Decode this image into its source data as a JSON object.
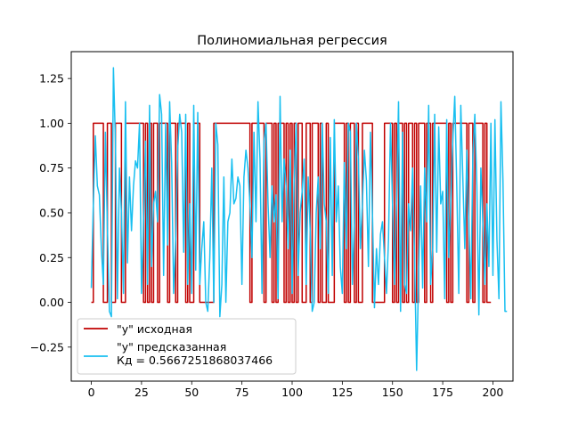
{
  "chart_data": {
    "type": "line",
    "title": "Полиномиальная регрессия",
    "xlabel": "",
    "ylabel": "",
    "xlim": [
      -10,
      210
    ],
    "ylim": [
      -0.44,
      1.4
    ],
    "x_ticks": [
      0,
      25,
      50,
      75,
      100,
      125,
      150,
      175,
      200
    ],
    "x_tick_labels": [
      "0",
      "25",
      "50",
      "75",
      "100",
      "125",
      "150",
      "175",
      "200"
    ],
    "y_ticks": [
      -0.25,
      0.0,
      0.25,
      0.5,
      0.75,
      1.0,
      1.25
    ],
    "y_tick_labels": [
      "−0.25",
      "0.00",
      "0.25",
      "0.50",
      "0.75",
      "1.00",
      "1.25"
    ],
    "grid": false,
    "legend_position": "lower-left",
    "series": [
      {
        "name": "\"y\" исходная",
        "color": "#c00000",
        "style": "step",
        "x_start": 0,
        "values": [
          0,
          1,
          1,
          1,
          1,
          1,
          0,
          0,
          1,
          1,
          0,
          0,
          1,
          1,
          1,
          0,
          0,
          1,
          1,
          1,
          1,
          1,
          1,
          1,
          1,
          1,
          0,
          1,
          0,
          1,
          0,
          1,
          1,
          0,
          1,
          1,
          1,
          1,
          0,
          1,
          1,
          1,
          0,
          1,
          1,
          1,
          1,
          0,
          1,
          0,
          0,
          1,
          1,
          1,
          0,
          0,
          0,
          0,
          0,
          0,
          0,
          1,
          1,
          1,
          1,
          1,
          1,
          1,
          1,
          1,
          1,
          1,
          1,
          1,
          1,
          1,
          1,
          1,
          1,
          0,
          1,
          1,
          1,
          1,
          1,
          1,
          0,
          1,
          1,
          1,
          0,
          1,
          0,
          1,
          1,
          1,
          0,
          1,
          0,
          1,
          0,
          1,
          0,
          1,
          1,
          0,
          0,
          1,
          1,
          0,
          1,
          1,
          1,
          0,
          1,
          0,
          0,
          1,
          0,
          0,
          0,
          1,
          1,
          1,
          1,
          1,
          0,
          1,
          0,
          1,
          1,
          0,
          1,
          0,
          0,
          1,
          1,
          1,
          1,
          1,
          0,
          0,
          0,
          0,
          0,
          0,
          1,
          1,
          1,
          1,
          0,
          1,
          0,
          1,
          1,
          0,
          1,
          0,
          1,
          1,
          0,
          1,
          0,
          1,
          1,
          1,
          0,
          1,
          1,
          0,
          1,
          1,
          1,
          1,
          1,
          1,
          1,
          0,
          1,
          0,
          1,
          1,
          1,
          1,
          1,
          1,
          1,
          0,
          1,
          1,
          0,
          1,
          1,
          1,
          1,
          0,
          1,
          0,
          0,
          0
        ]
      },
      {
        "name": "\"y\" предсказанная\nКд = 0.5667251868037466",
        "color": "#18bff0",
        "style": "line",
        "x_start": 0,
        "values": [
          0.08,
          0.55,
          0.93,
          0.65,
          0.6,
          0.3,
          0.1,
          0.95,
          0.42,
          -0.05,
          -0.08,
          1.31,
          0.9,
          0.02,
          0.75,
          0.5,
          0.05,
          1.12,
          0.22,
          0.7,
          0.4,
          0.65,
          0.79,
          0.75,
          1.0,
          0.05,
          0.45,
          0.9,
          0.1,
          1.1,
          0.2,
          0.55,
          0.62,
          0.45,
          1.16,
          1.05,
          0.15,
          1.0,
          0.32,
          1.12,
          0.78,
          0.05,
          0.35,
          0.85,
          1.05,
          0.95,
          0.28,
          1.05,
          0.1,
          0.55,
          0.05,
          1.1,
          0.18,
          1.06,
          0.1,
          0.3,
          0.45,
          0.0,
          -0.05,
          0.25,
          0.75,
          0.0,
          1.0,
          0.88,
          -0.08,
          0.1,
          0.7,
          0.0,
          0.45,
          0.5,
          0.8,
          0.55,
          0.58,
          0.7,
          0.65,
          0.1,
          0.7,
          0.85,
          0.75,
          0.55,
          0.25,
          0.95,
          0.45,
          1.12,
          0.8,
          0.05,
          0.9,
          1.0,
          0.55,
          0.25,
          0.65,
          0.45,
          0.6,
          0.02,
          1.15,
          0.45,
          0.8,
          0.65,
          0.3,
          0.85,
          0.05,
          0.68,
          1.0,
          0.15,
          0.5,
          0.62,
          0.8,
          0.1,
          0.7,
          0.4,
          -0.05,
          0.0,
          0.5,
          0.7,
          0.3,
          1.0,
          0.55,
          0.45,
          0.05,
          0.92,
          0.15,
          1.02,
          0.45,
          0.65,
          0.2,
          0.05,
          0.78,
          0.3,
          1.0,
          0.95,
          0.1,
          0.45,
          1.0,
          0.8,
          0.3,
          0.55,
          0.85,
          0.68,
          0.2,
          0.95,
          0.5,
          -0.03,
          0.3,
          0.1,
          0.38,
          0.45,
          0.25,
          0.05,
          0.35,
          1.0,
          0.55,
          0.1,
          0.55,
          1.12,
          -0.05,
          0.95,
          0.1,
          0.05,
          0.55,
          0.4,
          0.75,
          0.25,
          -0.38,
          0.15,
          0.65,
          0.08,
          0.75,
          0.45,
          1.1,
          0.1,
          0.3,
          1.05,
          0.28,
          0.98,
          0.55,
          0.62,
          0.02,
          1.02,
          0.25,
          0.55,
          0.9,
          1.15,
          0.65,
          0.05,
          1.1,
          0.7,
          0.3,
          0.85,
          0.45,
          0.02,
          0.82,
          1.05,
          0.65,
          -0.07,
          0.75,
          0.45,
          0.1,
          0.55,
          0.2,
          1.0,
          0.15,
          1.02,
          0.35,
          0.02,
          1.12,
          0.68,
          -0.05,
          -0.05
        ]
      }
    ]
  }
}
